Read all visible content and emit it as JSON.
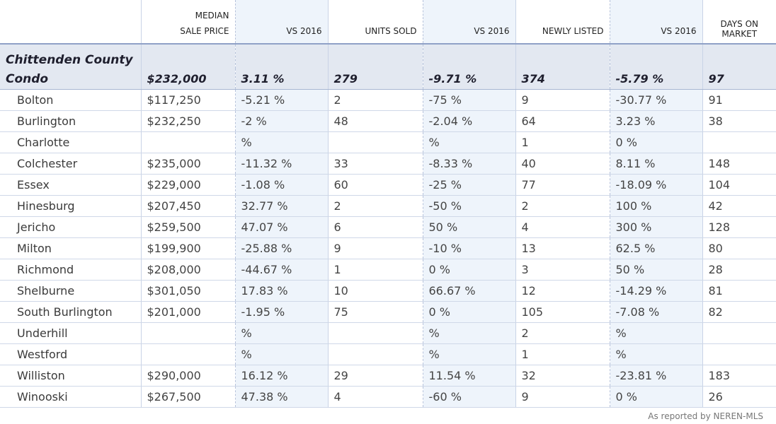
{
  "headers": {
    "median_sale_price": [
      "Median",
      "Sale Price"
    ],
    "vs_2016_price": "vs 2016",
    "units_sold": "Units Sold",
    "vs_2016_units": "vs 2016",
    "newly_listed": "Newly Listed",
    "vs_2016_listed": "vs 2016",
    "days_on_market": [
      "Days on",
      "Market"
    ]
  },
  "summary": {
    "region": "Chittenden County",
    "type": "Condo",
    "median_sale_price": "$232,000",
    "vs_2016_price": "3.11 %",
    "units_sold": "279",
    "vs_2016_units": "-9.71 %",
    "newly_listed": "374",
    "vs_2016_listed": "-5.79 %",
    "days_on_market": "97"
  },
  "rows": [
    {
      "town": "Bolton",
      "price": "$117,250",
      "price_vs": "-5.21 %",
      "units": "2",
      "units_vs": "-75 %",
      "listed": "9",
      "listed_vs": "-30.77 %",
      "dom": "91"
    },
    {
      "town": "Burlington",
      "price": "$232,250",
      "price_vs": "-2 %",
      "units": "48",
      "units_vs": "-2.04 %",
      "listed": "64",
      "listed_vs": "3.23 %",
      "dom": "38"
    },
    {
      "town": "Charlotte",
      "price": "",
      "price_vs": "%",
      "units": "",
      "units_vs": "%",
      "listed": "1",
      "listed_vs": "0 %",
      "dom": ""
    },
    {
      "town": "Colchester",
      "price": "$235,000",
      "price_vs": "-11.32 %",
      "units": "33",
      "units_vs": "-8.33 %",
      "listed": "40",
      "listed_vs": "8.11 %",
      "dom": "148"
    },
    {
      "town": "Essex",
      "price": "$229,000",
      "price_vs": "-1.08 %",
      "units": "60",
      "units_vs": "-25 %",
      "listed": "77",
      "listed_vs": "-18.09 %",
      "dom": "104"
    },
    {
      "town": "Hinesburg",
      "price": "$207,450",
      "price_vs": "32.77 %",
      "units": "2",
      "units_vs": "-50 %",
      "listed": "2",
      "listed_vs": "100 %",
      "dom": "42"
    },
    {
      "town": "Jericho",
      "price": "$259,500",
      "price_vs": "47.07 %",
      "units": "6",
      "units_vs": "50 %",
      "listed": "4",
      "listed_vs": "300 %",
      "dom": "128"
    },
    {
      "town": "Milton",
      "price": "$199,900",
      "price_vs": "-25.88 %",
      "units": "9",
      "units_vs": "-10 %",
      "listed": "13",
      "listed_vs": "62.5 %",
      "dom": "80"
    },
    {
      "town": "Richmond",
      "price": "$208,000",
      "price_vs": "-44.67 %",
      "units": "1",
      "units_vs": "0 %",
      "listed": "3",
      "listed_vs": "50 %",
      "dom": "28"
    },
    {
      "town": "Shelburne",
      "price": "$301,050",
      "price_vs": "17.83 %",
      "units": "10",
      "units_vs": "66.67 %",
      "listed": "12",
      "listed_vs": "-14.29 %",
      "dom": "81"
    },
    {
      "town": "South Burlington",
      "price": "$201,000",
      "price_vs": "-1.95 %",
      "units": "75",
      "units_vs": "0 %",
      "listed": "105",
      "listed_vs": "-7.08 %",
      "dom": "82"
    },
    {
      "town": "Underhill",
      "price": "",
      "price_vs": "%",
      "units": "",
      "units_vs": "%",
      "listed": "2",
      "listed_vs": "%",
      "dom": ""
    },
    {
      "town": "Westford",
      "price": "",
      "price_vs": "%",
      "units": "",
      "units_vs": "%",
      "listed": "1",
      "listed_vs": "%",
      "dom": ""
    },
    {
      "town": "Williston",
      "price": "$290,000",
      "price_vs": "16.12 %",
      "units": "29",
      "units_vs": "11.54 %",
      "listed": "32",
      "listed_vs": "-23.81 %",
      "dom": "183"
    },
    {
      "town": "Winooski",
      "price": "$267,500",
      "price_vs": "47.38 %",
      "units": "4",
      "units_vs": "-60 %",
      "listed": "9",
      "listed_vs": "0 %",
      "dom": "26"
    }
  ],
  "credit": "As reported by NEREN-MLS"
}
